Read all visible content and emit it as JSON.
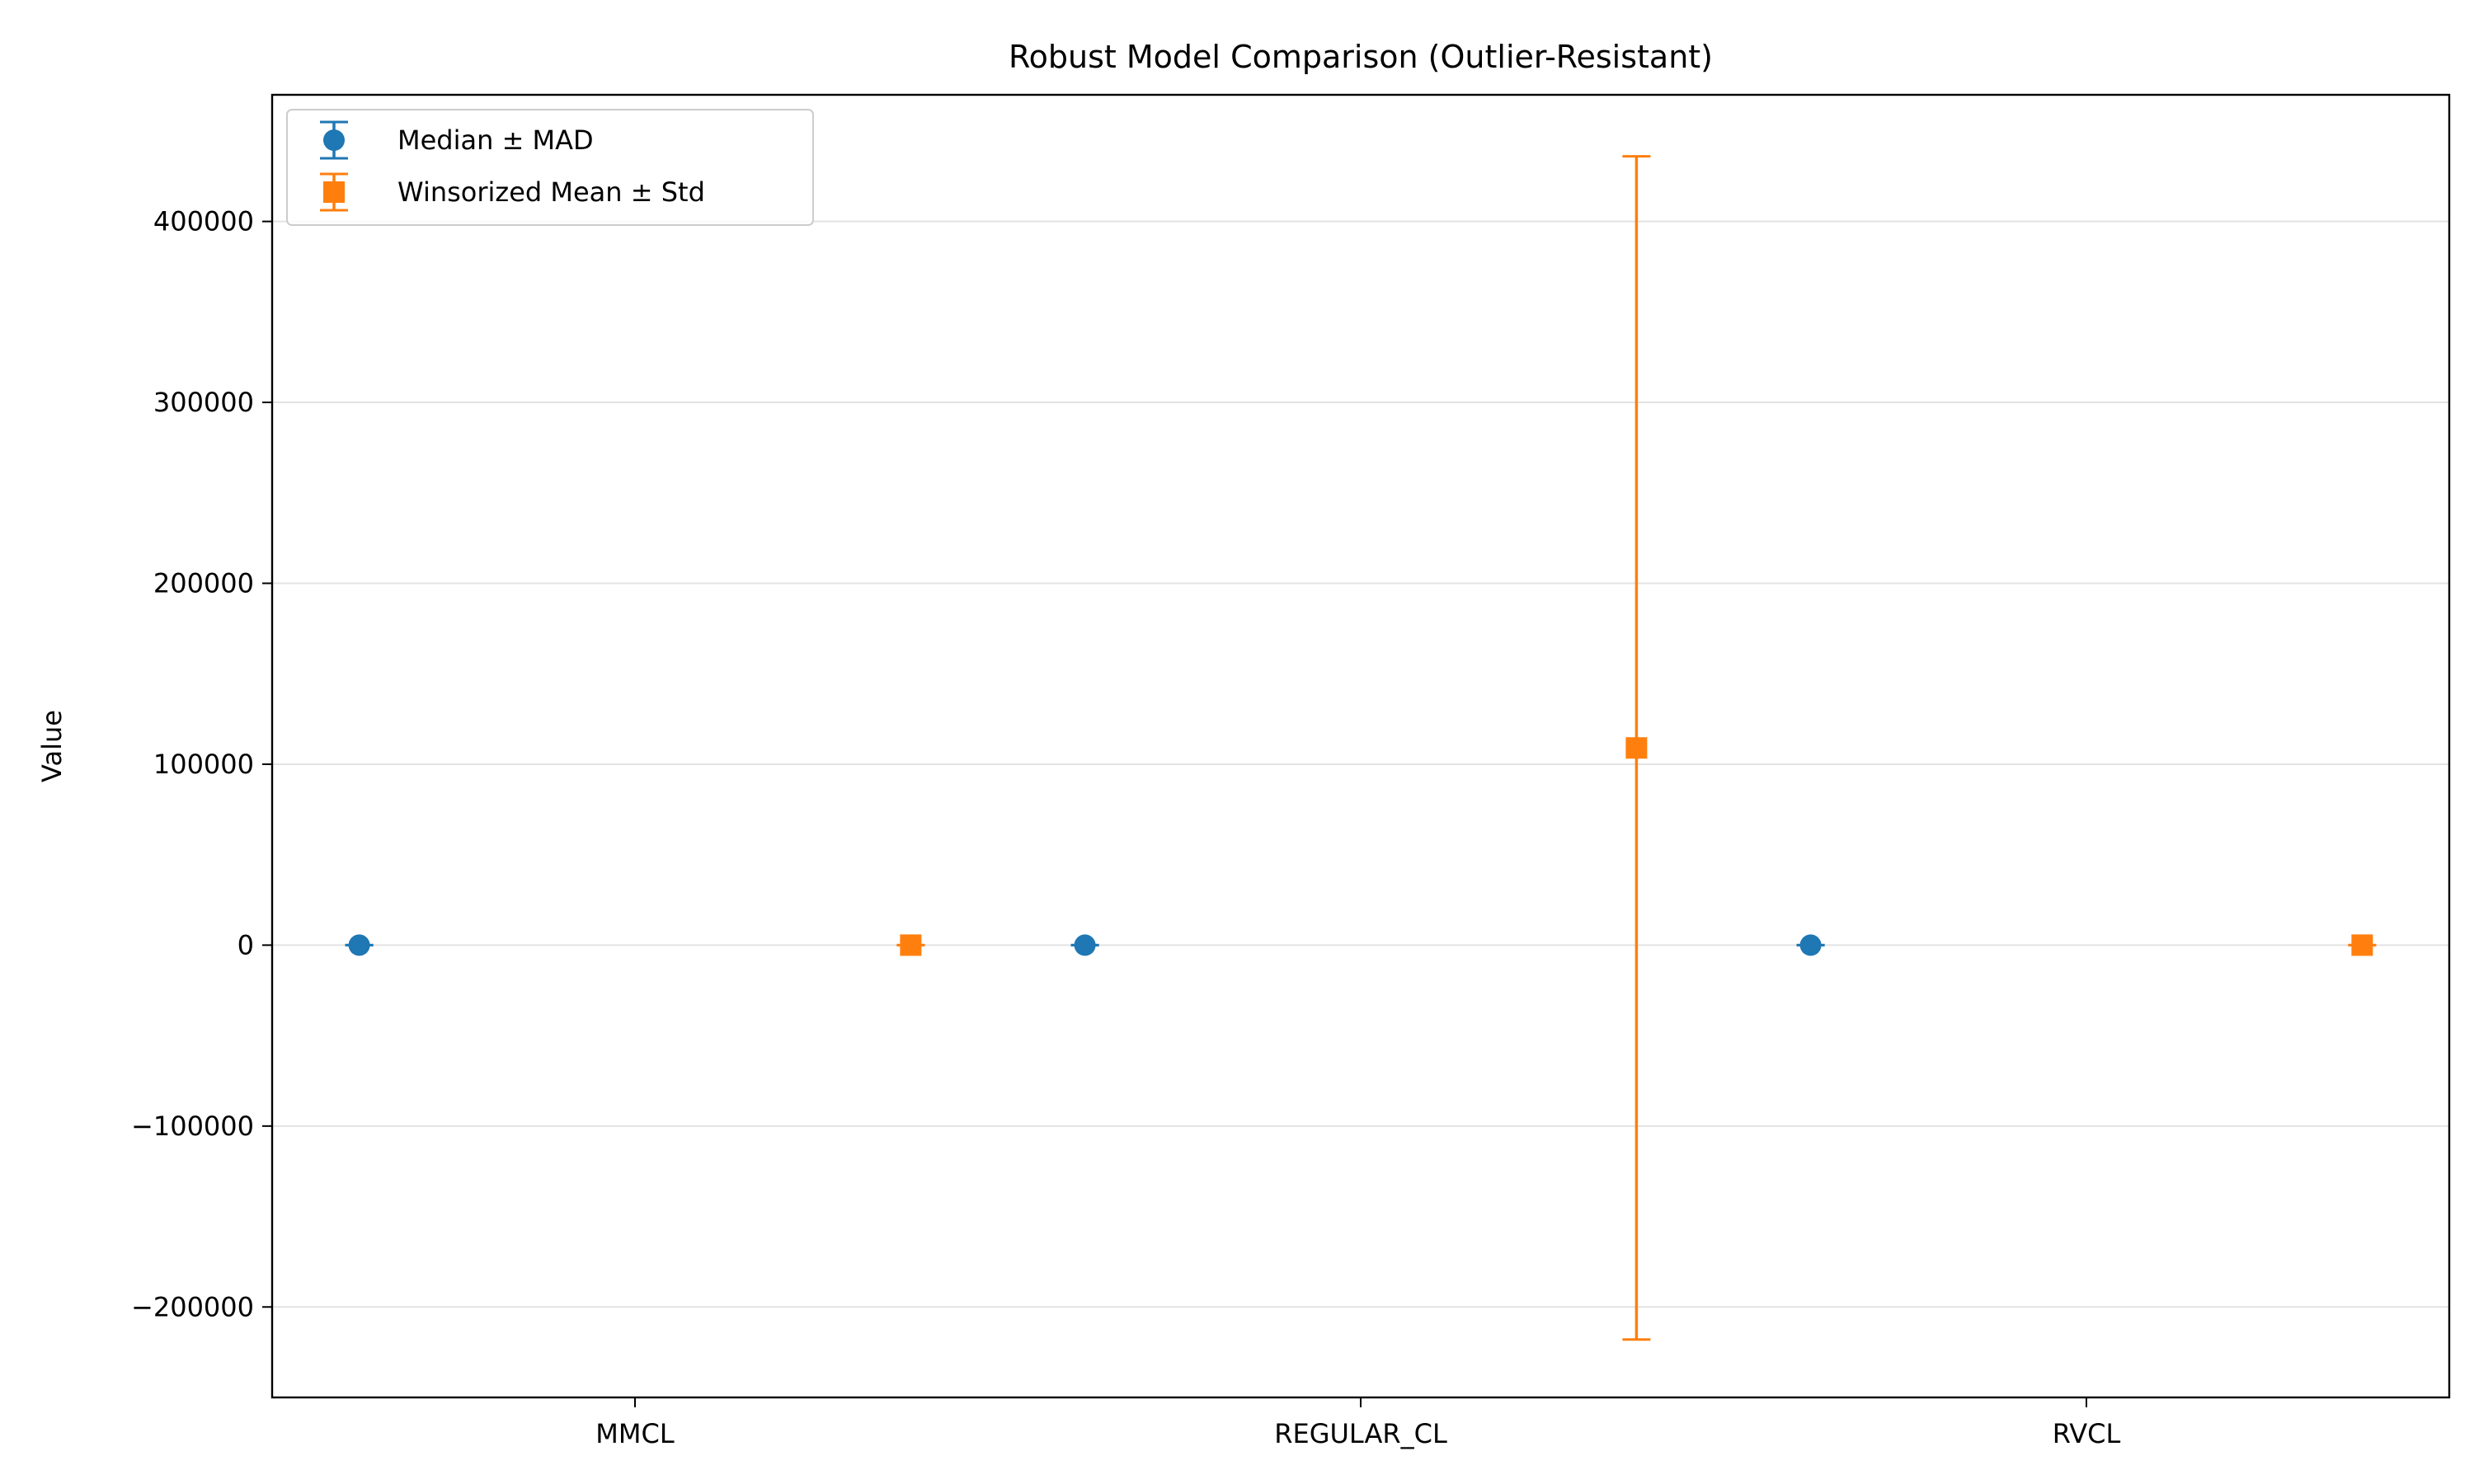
{
  "chart_data": {
    "type": "scatter",
    "title": "Robust Model Comparison (Outlier-Resistant)",
    "xlabel": "",
    "ylabel": "Value",
    "categories": [
      "MMCL",
      "REGULAR_CL",
      "RVCL"
    ],
    "ylim": [
      -250000,
      470000
    ],
    "yticks": [
      -200000,
      -100000,
      0,
      100000,
      200000,
      300000,
      400000
    ],
    "ytick_labels": [
      "−200000",
      "−100000",
      "0",
      "100000",
      "200000",
      "300000",
      "400000"
    ],
    "grid": "horizontal",
    "legend_position": "top-left",
    "series": [
      {
        "name": "Median ± MAD",
        "marker": "circle",
        "color": "#1f77b4",
        "values": [
          0,
          0,
          0
        ],
        "errors": [
          0,
          0,
          0
        ]
      },
      {
        "name": "Winsorized Mean ± Std",
        "marker": "square",
        "color": "#ff7f0e",
        "values": [
          0,
          109000,
          0
        ],
        "errors": [
          0,
          327000,
          0
        ]
      }
    ]
  }
}
